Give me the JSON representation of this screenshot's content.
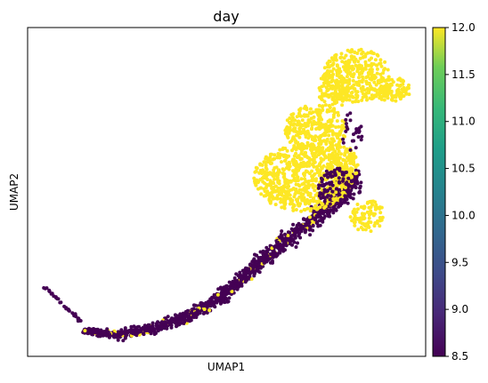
{
  "chart_data": {
    "type": "scatter",
    "title": "day",
    "xlabel": "UMAP1",
    "ylabel": "UMAP2",
    "colorbar": {
      "colormap": "viridis",
      "range": [
        8.5,
        12.0
      ],
      "ticks": [
        "8.5",
        "9.0",
        "9.5",
        "10.0",
        "10.5",
        "11.0",
        "11.5",
        "12.0"
      ]
    },
    "groups": [
      {
        "value": 8.5,
        "color": "#440154"
      },
      {
        "value": 12.0,
        "color": "#fde725"
      }
    ],
    "grid": false,
    "axis_ticks": false
  }
}
